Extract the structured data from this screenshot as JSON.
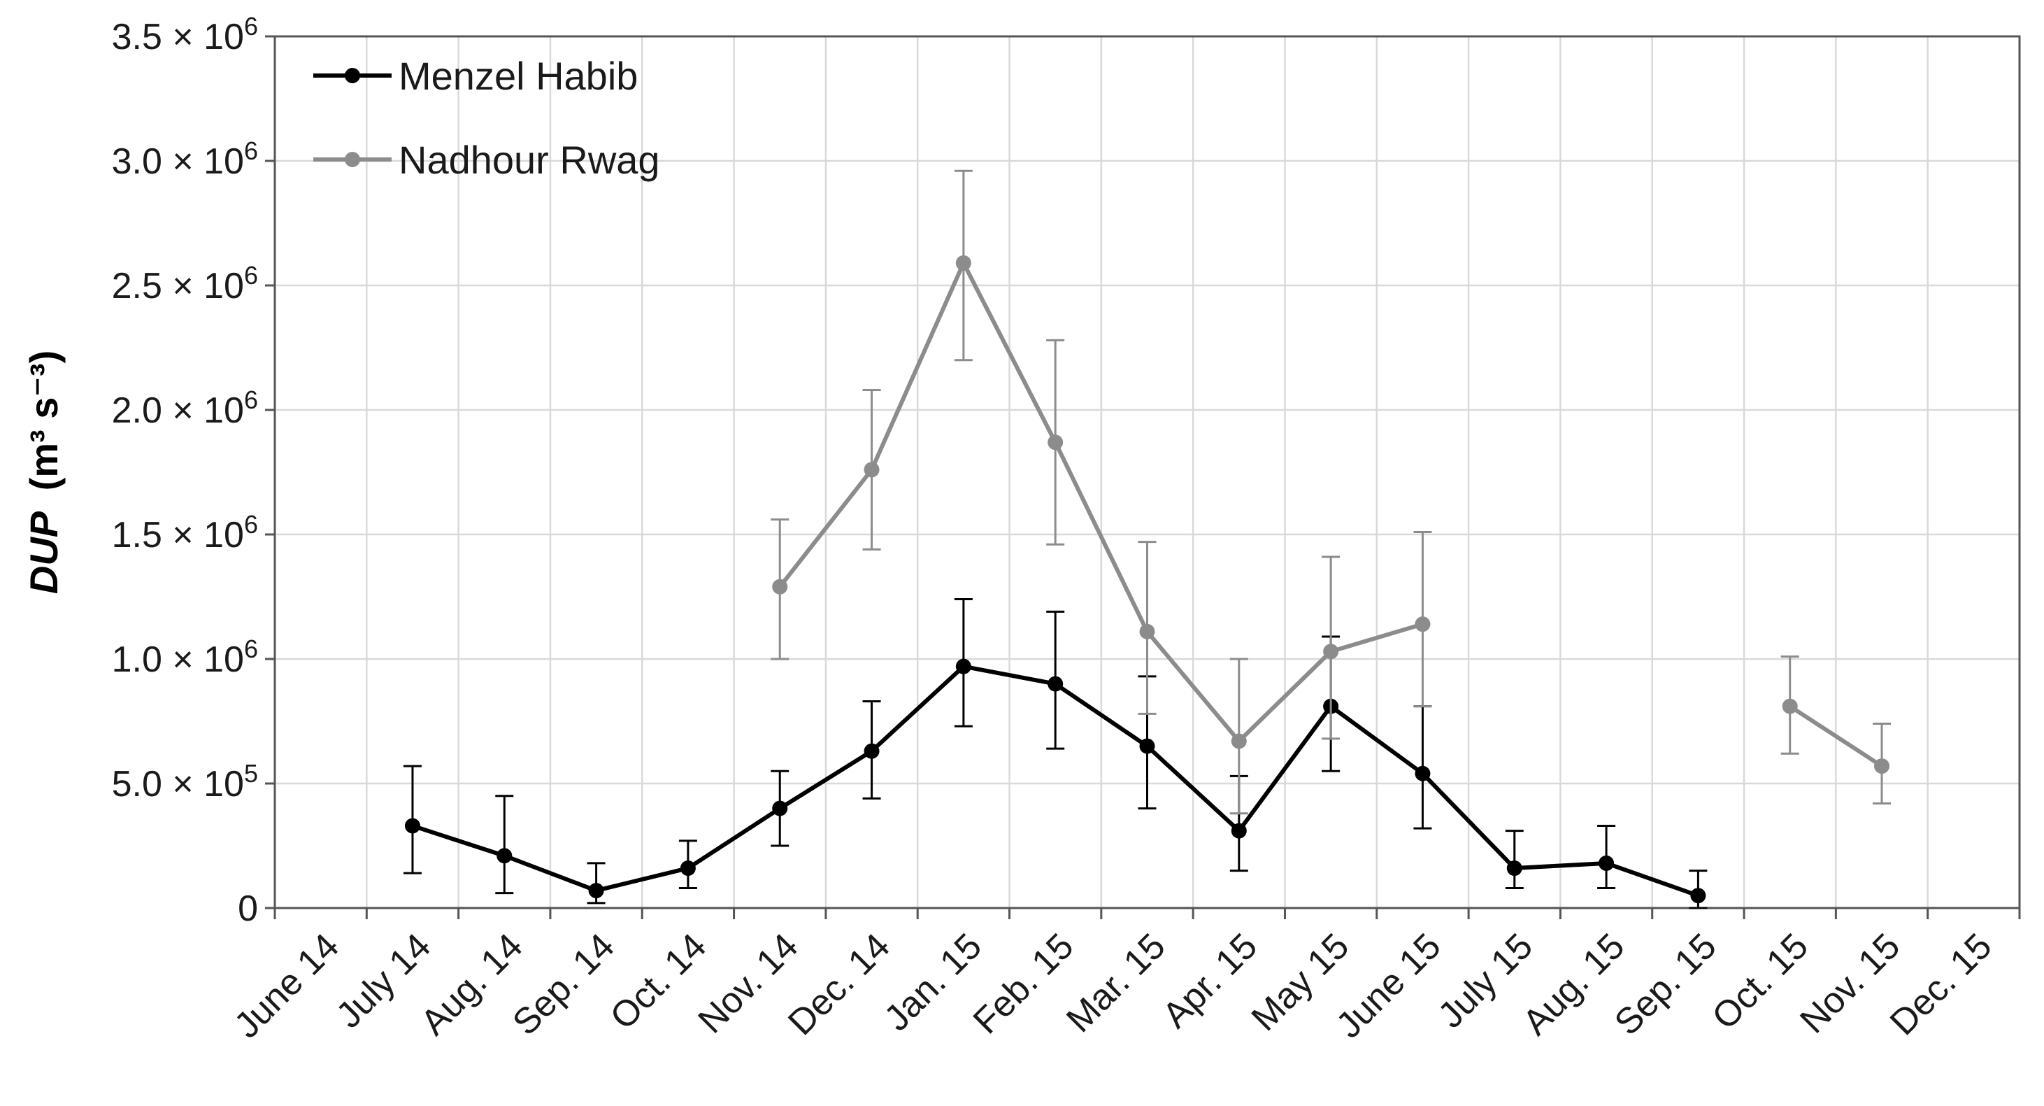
{
  "chart_data": {
    "type": "line",
    "title": "",
    "xlabel": "",
    "ylabel_var": "DUP",
    "ylabel_unit": "(m³ s⁻³)",
    "categories": [
      "June 14",
      "July 14",
      "Aug. 14",
      "Sep. 14",
      "Oct. 14",
      "Nov. 14",
      "Dec. 14",
      "Jan. 15",
      "Feb. 15",
      "Mar. 15",
      "Apr. 15",
      "May 15",
      "June 15",
      "July 15",
      "Aug. 15",
      "Sep. 15",
      "Oct. 15",
      "Nov. 15",
      "Dec. 15"
    ],
    "ylim": [
      0,
      3500000
    ],
    "yticks": [
      0,
      500000,
      1000000,
      1500000,
      2000000,
      2500000,
      3000000,
      3500000
    ],
    "ytick_labels": [
      {
        "mantissa": "0",
        "exp": ""
      },
      {
        "mantissa": "5.0 × 10",
        "exp": "5"
      },
      {
        "mantissa": "1.0 × 10",
        "exp": "6"
      },
      {
        "mantissa": "1.5 × 10",
        "exp": "6"
      },
      {
        "mantissa": "2.0 × 10",
        "exp": "6"
      },
      {
        "mantissa": "2.5 × 10",
        "exp": "6"
      },
      {
        "mantissa": "3.0 × 10",
        "exp": "6"
      },
      {
        "mantissa": "3.5 × 10",
        "exp": "6"
      }
    ],
    "grid": true,
    "legend_position": "top-left",
    "series": [
      {
        "name": "Menzel Habib",
        "color": "#000000",
        "points": [
          {
            "x": "July 14",
            "y": 330000,
            "low": 140000,
            "high": 570000
          },
          {
            "x": "Aug. 14",
            "y": 210000,
            "low": 60000,
            "high": 450000
          },
          {
            "x": "Sep. 14",
            "y": 70000,
            "low": 20000,
            "high": 180000
          },
          {
            "x": "Oct. 14",
            "y": 160000,
            "low": 80000,
            "high": 270000
          },
          {
            "x": "Nov. 14",
            "y": 400000,
            "low": 250000,
            "high": 550000
          },
          {
            "x": "Dec. 14",
            "y": 630000,
            "low": 440000,
            "high": 830000
          },
          {
            "x": "Jan. 15",
            "y": 970000,
            "low": 730000,
            "high": 1240000
          },
          {
            "x": "Feb. 15",
            "y": 900000,
            "low": 640000,
            "high": 1190000
          },
          {
            "x": "Mar. 15",
            "y": 650000,
            "low": 400000,
            "high": 930000
          },
          {
            "x": "Apr. 15",
            "y": 310000,
            "low": 150000,
            "high": 530000
          },
          {
            "x": "May 15",
            "y": 810000,
            "low": 550000,
            "high": 1090000
          },
          {
            "x": "June 15",
            "y": 540000,
            "low": 320000,
            "high": 810000
          },
          {
            "x": "July 15",
            "y": 160000,
            "low": 80000,
            "high": 310000
          },
          {
            "x": "Aug. 15",
            "y": 180000,
            "low": 80000,
            "high": 330000
          },
          {
            "x": "Sep. 15",
            "y": 50000,
            "low": 0,
            "high": 150000
          }
        ]
      },
      {
        "name": "Nadhour Rwag",
        "color": "#8c8c8c",
        "points": [
          {
            "x": "Nov. 14",
            "y": 1290000,
            "low": 1000000,
            "high": 1560000
          },
          {
            "x": "Dec. 14",
            "y": 1760000,
            "low": 1440000,
            "high": 2080000
          },
          {
            "x": "Jan. 15",
            "y": 2590000,
            "low": 2200000,
            "high": 2960000
          },
          {
            "x": "Feb. 15",
            "y": 1870000,
            "low": 1460000,
            "high": 2280000
          },
          {
            "x": "Mar. 15",
            "y": 1110000,
            "low": 780000,
            "high": 1470000
          },
          {
            "x": "Apr. 15",
            "y": 670000,
            "low": 380000,
            "high": 1000000
          },
          {
            "x": "May 15",
            "y": 1030000,
            "low": 680000,
            "high": 1410000
          },
          {
            "x": "June 15",
            "y": 1140000,
            "low": 810000,
            "high": 1510000
          },
          {
            "x": "July 15",
            "y": null
          },
          {
            "x": "Aug. 15",
            "y": null
          },
          {
            "x": "Sep. 15",
            "y": null
          },
          {
            "x": "Oct. 15",
            "y": 810000,
            "low": 620000,
            "high": 1010000
          },
          {
            "x": "Nov. 15",
            "y": 570000,
            "low": 420000,
            "high": 740000
          }
        ]
      }
    ]
  }
}
